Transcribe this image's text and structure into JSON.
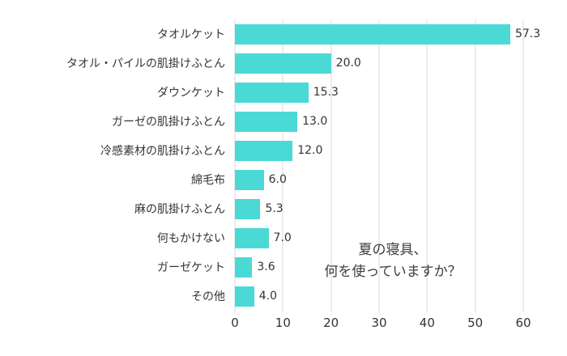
{
  "chart_data": {
    "type": "bar",
    "orientation": "horizontal",
    "title": "",
    "categories": [
      "タオルケット",
      "タオル・パイルの肌掛けふとん",
      "ダウンケット",
      "ガーゼの肌掛けふとん",
      "冷感素材の肌掛けふとん",
      "綿毛布",
      "麻の肌掛けふとん",
      "何もかけない",
      "ガーゼケット",
      "その他"
    ],
    "values": [
      57.3,
      20.0,
      15.3,
      13.0,
      12.0,
      6.0,
      5.3,
      7.0,
      3.6,
      4.0
    ],
    "value_labels": [
      "57.3",
      "20.0",
      "15.3",
      "13.0",
      "12.0",
      "6.0",
      "5.3",
      "7.0",
      "3.6",
      "4.0"
    ],
    "x_ticks": [
      0,
      10,
      20,
      30,
      40,
      50,
      60
    ],
    "xlim": [
      0,
      60
    ],
    "grid": true,
    "legend": false,
    "bar_color": "#4bd9d6",
    "grid_color": "#d9d9d9",
    "annotation_lines": [
      "夏の寝具、",
      "何を使っていますか？"
    ]
  }
}
